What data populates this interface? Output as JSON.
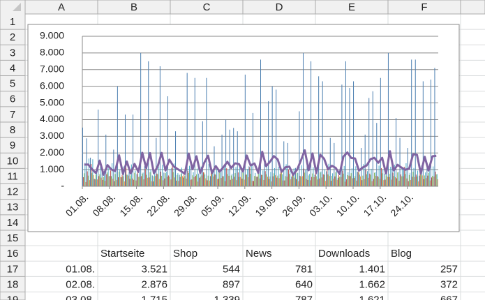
{
  "sheet": {
    "column_headers": [
      "A",
      "B",
      "C",
      "D",
      "E",
      "F"
    ],
    "row_headers": [
      "1",
      "2",
      "3",
      "4",
      "5",
      "6",
      "7",
      "8",
      "9",
      "10",
      "11",
      "12",
      "13",
      "14",
      "15",
      "16",
      "17",
      "18",
      "19"
    ]
  },
  "chart_data": {
    "type": "bar",
    "categories": [
      "01.08.",
      null,
      null,
      null,
      null,
      null,
      null,
      "08.08.",
      null,
      null,
      null,
      null,
      null,
      null,
      "15.08.",
      null,
      null,
      null,
      null,
      null,
      null,
      "22.08.",
      null,
      null,
      null,
      null,
      null,
      null,
      "29.08.",
      null,
      null,
      null,
      null,
      null,
      null,
      "05.09.",
      null,
      null,
      null,
      null,
      null,
      null,
      "12.09.",
      null,
      null,
      null,
      null,
      null,
      null,
      "19.09.",
      null,
      null,
      null,
      null,
      null,
      null,
      "26.09.",
      null,
      null,
      null,
      null,
      null,
      null,
      "03.10.",
      null,
      null,
      null,
      null,
      null,
      null,
      "10.10.",
      null,
      null,
      null,
      null,
      null,
      null,
      "17.10.",
      null,
      null,
      null,
      null,
      null,
      null,
      "24.10.",
      null,
      null,
      null,
      null,
      null,
      null,
      null
    ],
    "ylim": [
      0,
      9000
    ],
    "yticks": [
      {
        "value": 0,
        "label": "-"
      },
      {
        "value": 1000,
        "label": "1.000"
      },
      {
        "value": 2000,
        "label": "2.000"
      },
      {
        "value": 3000,
        "label": "3.000"
      },
      {
        "value": 4000,
        "label": "4.000"
      },
      {
        "value": 5000,
        "label": "5.000"
      },
      {
        "value": 6000,
        "label": "6.000"
      },
      {
        "value": 7000,
        "label": "7.000"
      },
      {
        "value": 8000,
        "label": "8.000"
      },
      {
        "value": 9000,
        "label": "9.000"
      }
    ],
    "grid": true,
    "series": [
      {
        "name": "Startseite",
        "color": "#4a7eb0",
        "values": [
          3521,
          2876,
          1715,
          450,
          4600,
          980,
          3100,
          620,
          2200,
          6000,
          540,
          4300,
          870,
          4300,
          730,
          8000,
          1200,
          7500,
          650,
          2900,
          7200,
          820,
          5400,
          1100,
          3300,
          690,
          520,
          6800,
          1300,
          6500,
          760,
          3900,
          6500,
          610,
          2400,
          920,
          3100,
          4000,
          3400,
          3500,
          3300,
          870,
          6700,
          1200,
          4400,
          560,
          7600,
          1400,
          5100,
          6000,
          5800,
          740,
          2700,
          2600,
          580,
          1100,
          4500,
          8000,
          1300,
          7500,
          690,
          6600,
          6300,
          900,
          2900,
          2600,
          510,
          6100,
          7500,
          5900,
          6300,
          880,
          2300,
          3100,
          5300,
          5700,
          3800,
          6500,
          760,
          8000,
          1400,
          4100,
          2900,
          1000,
          2300,
          7600,
          7600,
          640,
          6300,
          1200,
          6400,
          7100
        ]
      },
      {
        "name": "Shop",
        "color": "#c0504d",
        "values": [
          544,
          897,
          1339,
          420,
          610,
          380,
          720,
          950,
          310,
          540,
          680,
          1120,
          450,
          390,
          820,
          610,
          1040,
          530,
          290,
          760,
          880,
          470,
          650,
          1210,
          340,
          560,
          700,
          930,
          410,
          620,
          510,
          840,
          360,
          990,
          720,
          450,
          610,
          1080,
          390,
          570,
          830,
          460,
          700,
          1150,
          320,
          580,
          690,
          910,
          440,
          600,
          520,
          870,
          350,
          1010,
          740,
          430,
          630,
          1060,
          380,
          560,
          810,
          470,
          720,
          1190,
          330,
          590,
          680,
          940,
          420,
          610,
          500,
          860,
          370,
          980,
          760,
          440,
          620,
          1090,
          400,
          550,
          820,
          480,
          710,
          1170,
          310,
          570,
          700,
          920,
          430,
          640,
          530,
          880
        ]
      },
      {
        "name": "News",
        "color": "#9bbb59",
        "values": [
          781,
          640,
          787,
          690,
          720,
          560,
          830,
          610,
          740,
          880,
          590,
          700,
          650,
          810,
          560,
          760,
          690,
          840,
          600,
          720,
          630,
          790,
          570,
          850,
          680,
          740,
          610,
          800,
          660,
          710,
          580,
          820,
          640,
          760,
          690,
          870,
          600,
          730,
          650,
          790,
          560,
          810,
          700,
          750,
          620,
          840,
          670,
          720,
          590,
          780,
          640,
          860,
          610,
          740,
          680,
          800,
          570,
          820,
          650,
          770,
          600,
          830,
          690,
          710,
          630,
          850,
          580,
          760,
          670,
          790,
          610,
          840,
          640,
          720,
          690,
          810,
          560,
          780,
          660,
          750,
          620,
          830,
          600,
          740,
          680,
          870,
          590,
          760,
          650,
          800,
          630,
          710
        ]
      },
      {
        "name": "Downloads",
        "color": "#4bacc6",
        "values": [
          1401,
          1662,
          1621,
          980,
          1240,
          760,
          1100,
          1380,
          870,
          1020,
          1190,
          690,
          1310,
          940,
          1080,
          820,
          1250,
          1010,
          730,
          1160,
          1290,
          880,
          1050,
          1370,
          790,
          1120,
          960,
          1230,
          840,
          1070,
          1180,
          710,
          1340,
          920,
          1060,
          830,
          1270,
          990,
          750,
          1150,
          1300,
          870,
          1040,
          1360,
          800,
          1130,
          950,
          1210,
          860,
          1090,
          1170,
          720,
          1320,
          930,
          1070,
          810,
          1260,
          1000,
          740,
          1140,
          1280,
          890,
          1030,
          1350,
          780,
          1110,
          970,
          1220,
          850,
          1080,
          1200,
          700,
          1330,
          910,
          1050,
          840,
          1240,
          1020,
          760,
          1170,
          1290,
          860,
          1060,
          1380,
          810,
          1100,
          940,
          1250,
          830,
          1030,
          1190,
          730
        ]
      },
      {
        "name": "Blog",
        "color": "#f79646",
        "values": [
          257,
          372,
          667,
          410,
          520,
          330,
          600,
          450,
          380,
          560,
          290,
          640,
          470,
          350,
          580,
          420,
          510,
          300,
          620,
          440,
          360,
          570,
          410,
          530,
          320,
          610,
          460,
          390,
          550,
          280,
          650,
          480,
          340,
          590,
          430,
          500,
          310,
          630,
          450,
          370,
          560,
          400,
          540,
          330,
          600,
          470,
          380,
          570,
          290,
          660,
          490,
          350,
          580,
          420,
          520,
          300,
          610,
          440,
          360,
          550,
          410,
          530,
          320,
          620,
          460,
          390,
          560,
          280,
          640,
          480,
          340,
          590,
          430,
          510,
          310,
          630,
          450,
          370,
          570,
          400,
          540,
          330,
          600,
          470,
          380,
          560,
          290,
          650,
          490,
          350,
          580,
          420
        ]
      },
      {
        "type": "line",
        "color": "#8064a2",
        "values": [
          1300,
          1310,
          1030,
          790,
          1540,
          690,
          1270,
          1010,
          910,
          1860,
          740,
          1490,
          770,
          1340,
          860,
          2010,
          1100,
          1990,
          780,
          1210,
          2000,
          950,
          1600,
          1220,
          1050,
          910,
          750,
          1960,
          1020,
          1800,
          800,
          1410,
          1840,
          800,
          1210,
          880,
          1160,
          1470,
          1100,
          1380,
          1330,
          880,
          1850,
          1250,
          1370,
          800,
          2070,
          1210,
          1470,
          1810,
          1610,
          870,
          1140,
          1180,
          690,
          990,
          1550,
          2160,
          960,
          1970,
          790,
          1890,
          1650,
          1020,
          1230,
          1100,
          730,
          1790,
          2030,
          1700,
          1670,
          940,
          1130,
          1250,
          1630,
          1710,
          1410,
          1710,
          760,
          2110,
          950,
          1290,
          1120,
          990,
          1060,
          1920,
          1890,
          760,
          1770,
          950,
          1800,
          1830
        ]
      }
    ]
  },
  "table": {
    "header": [
      "Startseite",
      "Shop",
      "News",
      "Downloads",
      "Blog"
    ],
    "rows": [
      [
        "01.08.",
        "3.521",
        "544",
        "781",
        "1.401",
        "257"
      ],
      [
        "02.08.",
        "2.876",
        "897",
        "640",
        "1.662",
        "372"
      ],
      [
        "03.08.",
        "1.715",
        "1.339",
        "787",
        "1.621",
        "667"
      ]
    ]
  }
}
